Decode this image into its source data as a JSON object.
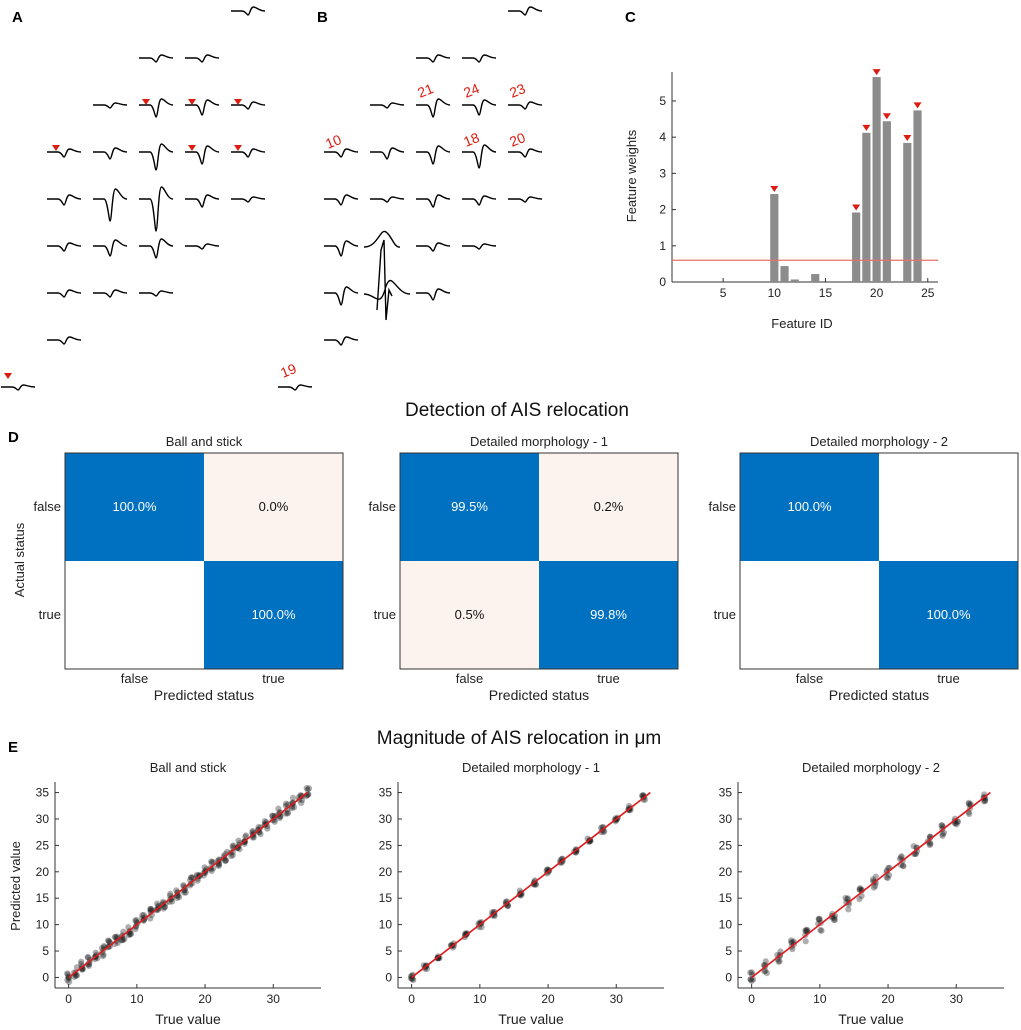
{
  "colors": {
    "marker": "#dd1b10",
    "bar": "#8c8c8c",
    "threshold": "#e8706b",
    "cm_high": "#0070c0",
    "cm_low": "#fdf3ee",
    "cm_zero": "#ffffff",
    "fit_line": "#e31a1c",
    "dots": "#1a1a1a"
  },
  "panels": {
    "A": "A",
    "B": "B",
    "C": "C",
    "D": "D",
    "E": "E"
  },
  "panel_a": {
    "markers": [
      [
        0,
        0
      ],
      [
        0,
        1
      ],
      [
        0,
        2
      ],
      [
        1,
        4
      ],
      [
        1,
        0
      ],
      [
        1,
        1
      ],
      [
        1,
        2
      ],
      [
        1,
        3
      ]
    ]
  },
  "panel_b": {
    "labels": [
      {
        "text": "21"
      },
      {
        "text": "24"
      },
      {
        "text": "23"
      },
      {
        "text": "10"
      },
      {
        "text": "18"
      },
      {
        "text": "20"
      },
      {
        "text": "19"
      }
    ]
  },
  "chart_data": [
    {
      "type": "bar",
      "panel": "C",
      "xlabel": "Feature ID",
      "ylabel": "Feature weights",
      "xlim": [
        0,
        26
      ],
      "ylim": [
        0,
        5.8
      ],
      "xticks": [
        "5",
        "10",
        "15",
        "20",
        "25"
      ],
      "yticks": [
        "0",
        "1",
        "2",
        "3",
        "4",
        "5"
      ],
      "threshold": 0.6,
      "bars": [
        {
          "id": 10,
          "value": 2.43,
          "selected": true
        },
        {
          "id": 11,
          "value": 0.44,
          "selected": false
        },
        {
          "id": 12,
          "value": 0.07,
          "selected": false
        },
        {
          "id": 14,
          "value": 0.22,
          "selected": false
        },
        {
          "id": 18,
          "value": 1.92,
          "selected": true
        },
        {
          "id": 19,
          "value": 4.12,
          "selected": true
        },
        {
          "id": 20,
          "value": 5.66,
          "selected": true
        },
        {
          "id": 21,
          "value": 4.44,
          "selected": true
        },
        {
          "id": 23,
          "value": 3.84,
          "selected": true
        },
        {
          "id": 24,
          "value": 4.74,
          "selected": true
        }
      ]
    },
    {
      "type": "heatmap",
      "panel": "D",
      "suptitle": "Detection of AIS relocation",
      "ylabel": "Actual status",
      "xlabel": "Predicted status",
      "row_labels": [
        "false",
        "true"
      ],
      "col_labels": [
        "false",
        "true"
      ],
      "matrices": [
        {
          "title": "Ball and stick",
          "cells": [
            [
              "100.0%",
              "0.0%"
            ],
            [
              "",
              "100.0%"
            ]
          ],
          "levels": [
            [
              2,
              1
            ],
            [
              0,
              2
            ]
          ]
        },
        {
          "title": "Detailed morphology - 1",
          "cells": [
            [
              "99.5%",
              "0.2%"
            ],
            [
              "0.5%",
              "99.8%"
            ]
          ],
          "levels": [
            [
              2,
              1
            ],
            [
              1,
              2
            ]
          ]
        },
        {
          "title": "Detailed morphology - 2",
          "cells": [
            [
              "100.0%",
              ""
            ],
            [
              "",
              "100.0%"
            ]
          ],
          "levels": [
            [
              2,
              0
            ],
            [
              0,
              2
            ]
          ]
        }
      ]
    },
    {
      "type": "scatter",
      "panel": "E",
      "suptitle": "Magnitude of AIS relocation in μm",
      "xlabel": "True value",
      "ylabel": "Predicted value",
      "xlim": [
        -2,
        37
      ],
      "ylim": [
        -2,
        37
      ],
      "xticks": [
        "0",
        "10",
        "20",
        "30"
      ],
      "yticks": [
        "0",
        "5",
        "10",
        "15",
        "20",
        "25",
        "30",
        "35"
      ],
      "fit_line": [
        [
          0,
          0
        ],
        [
          35,
          35
        ]
      ],
      "plots": [
        {
          "title": "Ball and stick",
          "x_values": [
            0,
            1,
            2,
            3,
            4,
            5,
            6,
            7,
            8,
            9,
            10,
            11,
            12,
            13,
            14,
            15,
            16,
            17,
            18,
            19,
            20,
            21,
            22,
            23,
            24,
            25,
            26,
            27,
            28,
            29,
            30,
            31,
            32,
            33,
            34,
            35
          ],
          "spread": 1.0
        },
        {
          "title": "Detailed morphology - 1",
          "x_values": [
            0,
            2,
            4,
            6,
            8,
            10,
            12,
            14,
            16,
            18,
            20,
            22,
            24,
            26,
            28,
            30,
            32,
            34
          ],
          "spread": 0.5
        },
        {
          "title": "Detailed morphology - 2",
          "x_values": [
            0,
            2,
            4,
            6,
            8,
            10,
            12,
            14,
            16,
            18,
            20,
            22,
            24,
            26,
            28,
            30,
            32,
            34
          ],
          "spread": 1.2
        }
      ]
    }
  ]
}
